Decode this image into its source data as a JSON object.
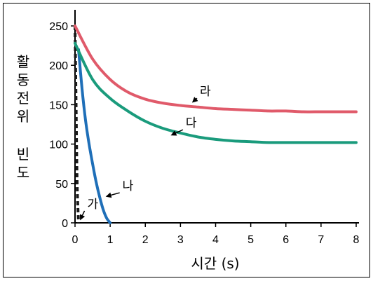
{
  "chart_data": {
    "type": "line",
    "xlabel": "시간 (s)",
    "ylabel_lines": [
      "활동전위",
      "빈도"
    ],
    "xlim": [
      0,
      8
    ],
    "ylim": [
      0,
      250
    ],
    "xticks": [
      0,
      1,
      2,
      3,
      4,
      5,
      6,
      7,
      8
    ],
    "yticks": [
      0,
      50,
      100,
      150,
      200,
      250
    ],
    "grid": false,
    "series": [
      {
        "name": "가",
        "color": "#1a1a1a",
        "dashed": true,
        "x": [
          0,
          0.03,
          0.06,
          0.1
        ],
        "y": [
          250,
          150,
          50,
          0
        ]
      },
      {
        "name": "나",
        "color": "#1f6fb8",
        "dashed": false,
        "x": [
          0.1,
          0.2,
          0.3,
          0.4,
          0.5,
          0.6,
          0.7,
          0.8,
          0.9,
          1.0
        ],
        "y": [
          220,
          170,
          130,
          100,
          75,
          52,
          33,
          17,
          6,
          0
        ]
      },
      {
        "name": "다",
        "color": "#1a9b7c",
        "dashed": false,
        "x": [
          0,
          0.5,
          1,
          1.5,
          2,
          2.5,
          3,
          3.5,
          4,
          4.5,
          5,
          5.5,
          6,
          6.5,
          7,
          7.5,
          8
        ],
        "y": [
          228,
          182,
          158,
          142,
          129,
          120,
          114,
          109,
          106,
          104,
          103,
          102,
          102,
          102,
          102,
          102,
          102
        ]
      },
      {
        "name": "라",
        "color": "#e05a6a",
        "dashed": false,
        "x": [
          0,
          0.5,
          1,
          1.5,
          2,
          2.5,
          3,
          3.5,
          4,
          4.5,
          5,
          5.5,
          6,
          6.5,
          7,
          7.5,
          8
        ],
        "y": [
          250,
          208,
          182,
          166,
          157,
          152,
          149,
          147,
          145,
          144,
          143,
          142,
          142,
          141,
          141,
          141,
          141
        ]
      }
    ],
    "annotations": [
      {
        "label": "가",
        "x": 0.35,
        "y": 17,
        "ax": 0.1,
        "ay": 3
      },
      {
        "label": "나",
        "x": 1.35,
        "y": 40,
        "ax": 0.85,
        "ay": 32
      },
      {
        "label": "다",
        "x": 3.15,
        "y": 120,
        "ax": 2.7,
        "ay": 110
      },
      {
        "label": "라",
        "x": 3.55,
        "y": 160,
        "ax": 3.3,
        "ay": 152
      }
    ]
  }
}
